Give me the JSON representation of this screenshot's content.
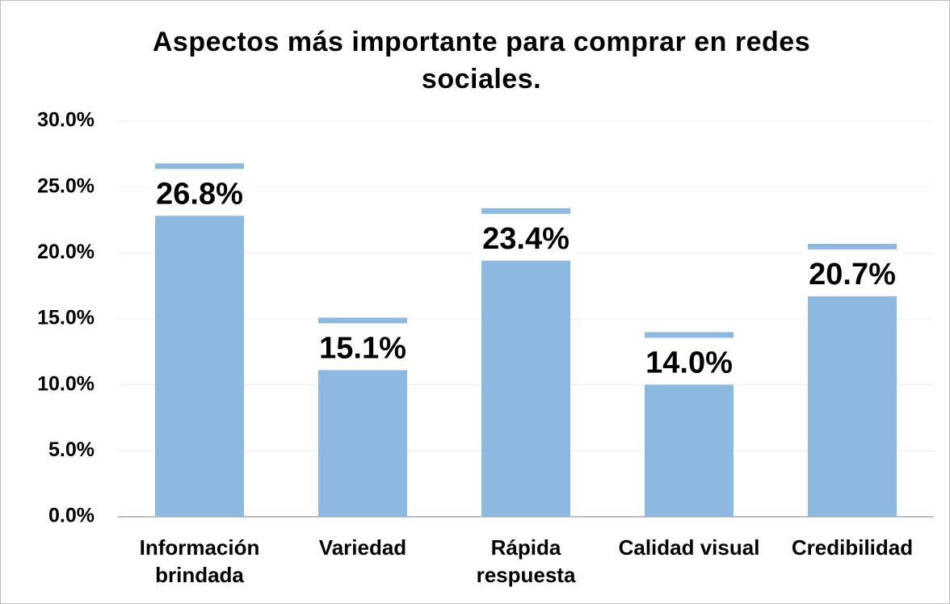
{
  "chart_data": {
    "type": "bar",
    "title": "Aspectos más importante para comprar en redes sociales.",
    "categories": [
      "Información brindada",
      "Variedad",
      "Rápida respuesta",
      "Calidad visual",
      "Credibilidad"
    ],
    "values": [
      26.8,
      15.1,
      23.4,
      14.0,
      20.7
    ],
    "value_labels": [
      "26.8%",
      "15.1%",
      "23.4%",
      "14.0%",
      "20.7%"
    ],
    "color": "#8db8e0",
    "ylim": [
      0,
      30
    ],
    "yticks": [
      {
        "value": 0,
        "label": "0.0%"
      },
      {
        "value": 5,
        "label": "5.0%"
      },
      {
        "value": 10,
        "label": "10.0%"
      },
      {
        "value": 15,
        "label": "15.0%"
      },
      {
        "value": 20,
        "label": "20.0%"
      },
      {
        "value": 25,
        "label": "25.0%"
      },
      {
        "value": 30,
        "label": "30.0%"
      }
    ],
    "grid": true
  }
}
